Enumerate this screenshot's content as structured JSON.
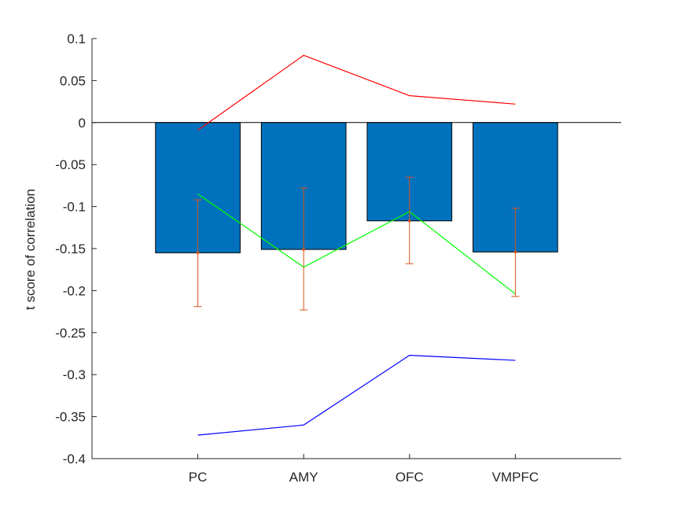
{
  "chart_data": {
    "type": "bar",
    "title": "",
    "xlabel": "",
    "ylabel": "t score of correlation",
    "categories": [
      "PC",
      "AMY",
      "OFC",
      "VMPFC"
    ],
    "ylim": [
      -0.4,
      0.1
    ],
    "yticks": [
      0.1,
      0.05,
      0,
      -0.05,
      -0.1,
      -0.15,
      -0.2,
      -0.25,
      -0.3,
      -0.35,
      -0.4
    ],
    "ytick_labels": [
      "0.1",
      "0.05",
      "0",
      "-0.05",
      "-0.1",
      "-0.15",
      "-0.2",
      "-0.25",
      "-0.3",
      "-0.35",
      "-0.4"
    ],
    "grid": false,
    "bars": {
      "values": [
        -0.155,
        -0.151,
        -0.117,
        -0.154
      ],
      "color": "#0072bd"
    },
    "error_bars": {
      "center": [
        -0.155,
        -0.151,
        -0.117,
        -0.154
      ],
      "lower": [
        -0.219,
        -0.223,
        -0.168,
        -0.207
      ],
      "upper": [
        -0.092,
        -0.078,
        -0.065,
        -0.102
      ],
      "color": "#d95319"
    },
    "series": [
      {
        "values": [
          -0.009,
          0.08,
          0.032,
          0.022
        ],
        "color": "#ff0000"
      },
      {
        "values": [
          -0.085,
          -0.172,
          -0.106,
          -0.204
        ],
        "color": "#00ff00"
      },
      {
        "values": [
          -0.372,
          -0.36,
          -0.277,
          -0.283
        ],
        "color": "#0000ff"
      }
    ],
    "zero_line": true
  }
}
